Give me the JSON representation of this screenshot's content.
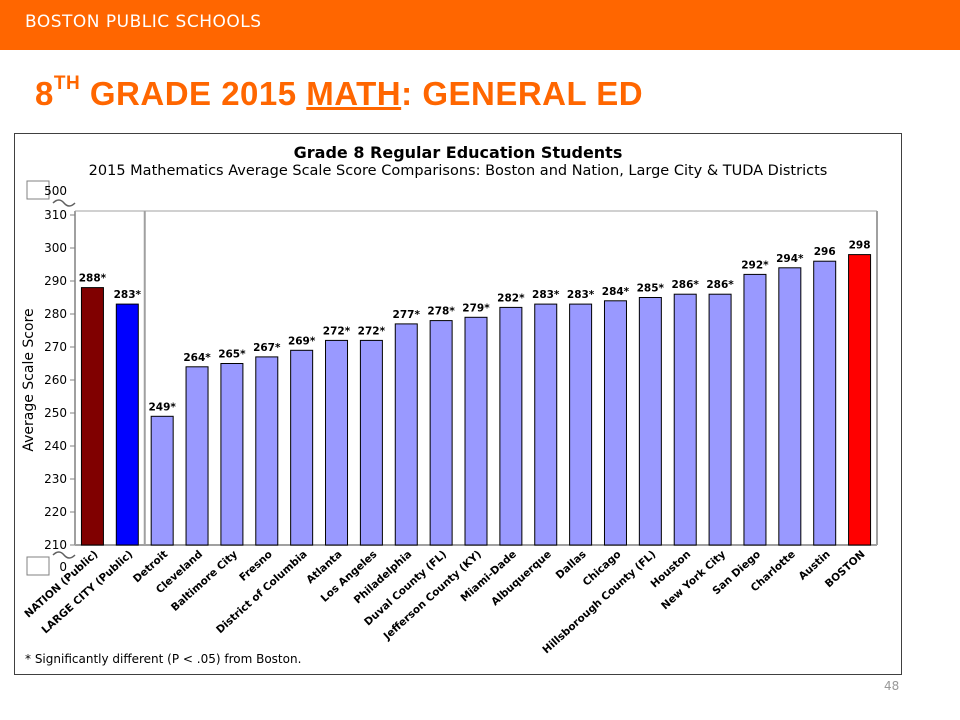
{
  "header": {
    "brand": "BOSTON PUBLIC SCHOOLS",
    "title_num": "8",
    "title_sup": "TH",
    "title_mid": " GRADE 2015 ",
    "title_underlined": "MATH",
    "title_end": ": GENERAL ED"
  },
  "footnote": "* Significantly different (P < .05) from Boston.",
  "page_number": "48",
  "colors": {
    "brand_orange": "#ff6600",
    "nation_bar": "#800000",
    "large_city_bar": "#0000ff",
    "district_bar": "#9999ff",
    "boston_bar": "#ff0000"
  },
  "chart_data": {
    "type": "bar",
    "title": "Grade 8 Regular Education Students",
    "subtitle": "2015 Mathematics Average Scale Score Comparisons: Boston and Nation, Large City & TUDA Districts",
    "ylabel": "Average Scale Score",
    "xlabel": "",
    "ylim": [
      210,
      310
    ],
    "axis_break": {
      "bottom_label": "0",
      "top_label": "500"
    },
    "yticks": [
      210,
      220,
      230,
      240,
      250,
      260,
      270,
      280,
      290,
      300,
      310
    ],
    "grid": false,
    "categories": [
      "NATION (Public)",
      "LARGE CITY (Public)",
      "Detroit",
      "Cleveland",
      "Baltimore City",
      "Fresno",
      "District of Columbia",
      "Atlanta",
      "Los Angeles",
      "Philadelphia",
      "Duval County (FL)",
      "Jefferson County (KY)",
      "Miami-Dade",
      "Albuquerque",
      "Dallas",
      "Chicago",
      "Hillsborough County (FL)",
      "Houston",
      "New York City",
      "San Diego",
      "Charlotte",
      "Austin",
      "BOSTON"
    ],
    "values": [
      288,
      283,
      249,
      264,
      265,
      267,
      269,
      272,
      272,
      277,
      278,
      279,
      282,
      283,
      283,
      284,
      285,
      286,
      286,
      292,
      294,
      296,
      298
    ],
    "data_labels": [
      "288*",
      "283*",
      "249*",
      "264*",
      "265*",
      "267*",
      "269*",
      "272*",
      "272*",
      "277*",
      "278*",
      "279*",
      "282*",
      "283*",
      "283*",
      "284*",
      "285*",
      "286*",
      "286*",
      "292*",
      "294*",
      "296",
      "298"
    ],
    "bold_categories": [
      "NATION (Public)",
      "LARGE CITY (Public)",
      "BOSTON"
    ],
    "bar_groups": [
      "nation",
      "large_city",
      "district",
      "district",
      "district",
      "district",
      "district",
      "district",
      "district",
      "district",
      "district",
      "district",
      "district",
      "district",
      "district",
      "district",
      "district",
      "district",
      "district",
      "district",
      "district",
      "district",
      "boston"
    ]
  }
}
